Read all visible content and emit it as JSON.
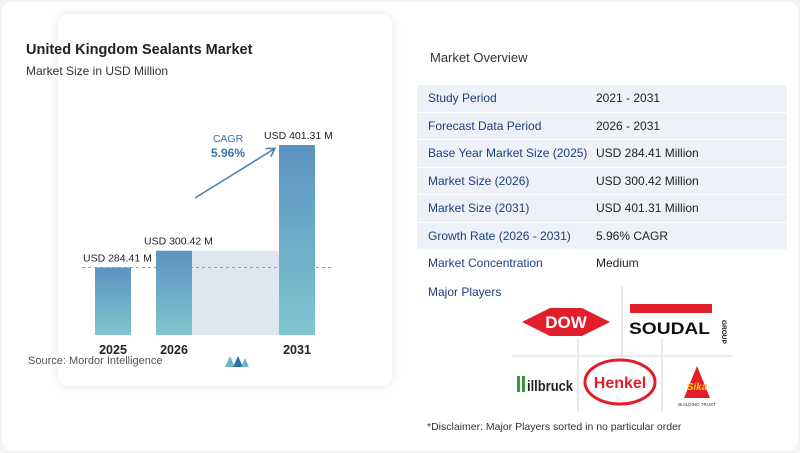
{
  "chart": {
    "title": "United Kingdom Sealants Market",
    "subtitle": "Market Size in USD Million",
    "source": "Source:  Mordor Intelligence",
    "cagr_label": "CAGR",
    "cagr_value": "5.96%"
  },
  "chart_data": {
    "type": "bar",
    "title": "United Kingdom Sealants Market",
    "subtitle": "Market Size in USD Million",
    "categories": [
      "2025",
      "2026",
      "2031"
    ],
    "values": [
      284.41,
      300.42,
      401.31
    ],
    "data_labels": [
      "USD 284.41 M",
      "USD 300.42 M",
      "USD 401.31 M"
    ],
    "unit": "USD Million",
    "annotation": {
      "label": "CAGR",
      "value": "5.96%"
    },
    "colors": {
      "bar_top": "#5b93c0",
      "bar_bottom": "#7fc6d0",
      "area": "#dde7f0",
      "arrow": "#4a7fb0",
      "cagr_text": "#3b73ad"
    }
  },
  "overview": {
    "title": "Market Overview",
    "rows": [
      {
        "label": "Study Period",
        "value": "2021 - 2031"
      },
      {
        "label": "Forecast Data Period",
        "value": "2026 - 2031"
      },
      {
        "label": "Base Year Market Size (2025)",
        "value": "USD 284.41 Million"
      },
      {
        "label": "Market Size (2026)",
        "value": "USD 300.42 Million"
      },
      {
        "label": "Market Size (2031)",
        "value": "USD 401.31 Million"
      },
      {
        "label": "Growth Rate (2026 - 2031)",
        "value": "5.96% CAGR"
      },
      {
        "label": "Market Concentration",
        "value": "Medium"
      }
    ]
  },
  "players": {
    "title": "Major Players",
    "logos": [
      {
        "name": "DOW",
        "text": "DOW"
      },
      {
        "name": "SOUDAL",
        "text": "SOUDAL",
        "subtext": "GROUP"
      },
      {
        "name": "illbruck",
        "text": "illbruck"
      },
      {
        "name": "Henkel",
        "text": "Henkel"
      },
      {
        "name": "Sika",
        "text": "Sika",
        "subtext": "BUILDING TRUST"
      }
    ]
  },
  "disclaimer": "*Disclaimer: Major Players sorted in no particular order",
  "colors": {
    "accent": "#1d3e7e",
    "row_shade": "#eef1f7"
  }
}
